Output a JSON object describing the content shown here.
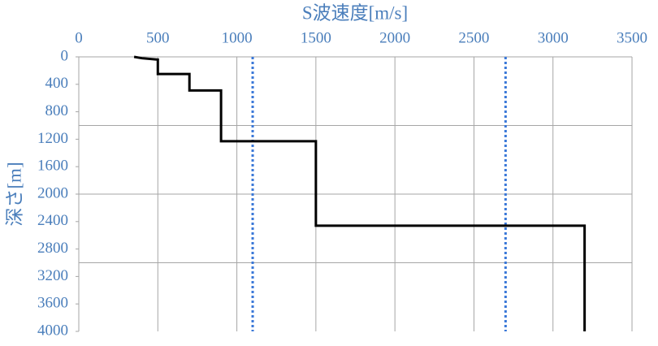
{
  "chart_data": {
    "type": "line",
    "x_label": "S波速度[m/s]",
    "y_label": "深さ[m]",
    "series": [
      {
        "color": "#000000",
        "x": [
          350,
          400,
          500,
          500,
          700,
          700,
          900,
          900,
          1500,
          1500,
          3200,
          3200
        ],
        "values": [
          0,
          20,
          40,
          250,
          250,
          490,
          490,
          1230,
          1230,
          2460,
          2460,
          4000
        ]
      }
    ],
    "reference_lines": {
      "color": "#3a78d8",
      "x": [
        1100,
        2700
      ]
    },
    "xlim": [
      0,
      3500
    ],
    "xticks": [
      0,
      500,
      1000,
      1500,
      2000,
      2500,
      3000,
      3500
    ],
    "ylim": [
      0,
      4000
    ],
    "yticks": [
      0,
      400,
      800,
      1200,
      1600,
      2000,
      2400,
      2800,
      3200,
      3600,
      4000
    ],
    "ygrid": [
      1000,
      2000,
      3000
    ],
    "y_inverted": true,
    "x_axis_position": "top",
    "grid": true
  }
}
